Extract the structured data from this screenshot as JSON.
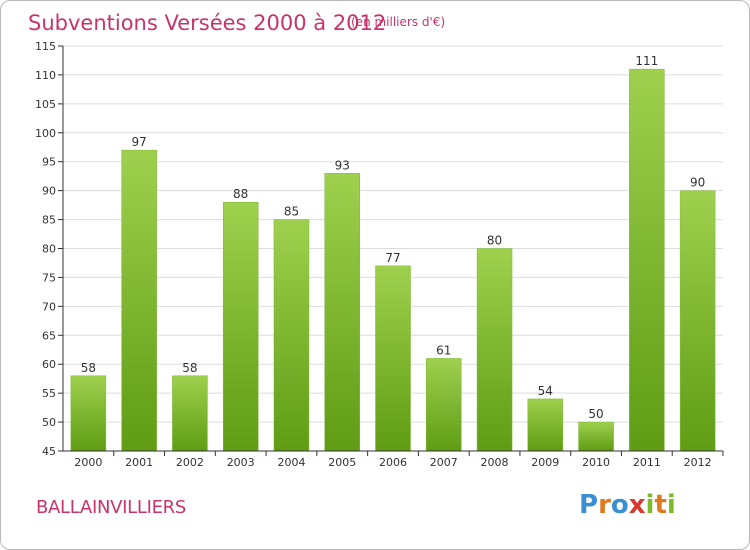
{
  "header": {
    "title": "Subventions Versées 2000 à 2012",
    "subtitle": "(en milliers d'€)"
  },
  "footer": {
    "commune": "BALLAINVILLIERS",
    "logo_text": "Proxiti"
  },
  "colors": {
    "title": "#c8336d",
    "bar_top": "#9ed04e",
    "bar_bottom": "#5f9c14",
    "grid": "#dddddd",
    "axis": "#333333"
  },
  "chart_data": {
    "type": "bar",
    "title": "Subventions Versées 2000 à 2012",
    "subtitle": "(en milliers d'€)",
    "xlabel": "",
    "ylabel": "",
    "categories": [
      "2000",
      "2001",
      "2002",
      "2003",
      "2004",
      "2005",
      "2006",
      "2007",
      "2008",
      "2009",
      "2010",
      "2011",
      "2012"
    ],
    "values": [
      58,
      97,
      58,
      88,
      85,
      93,
      77,
      61,
      80,
      54,
      50,
      111,
      90
    ],
    "ylim": [
      45,
      115
    ],
    "yticks": [
      45,
      50,
      55,
      60,
      65,
      70,
      75,
      80,
      85,
      90,
      95,
      100,
      105,
      110,
      115
    ],
    "grid": true,
    "data_labels": true,
    "legend": "none"
  }
}
